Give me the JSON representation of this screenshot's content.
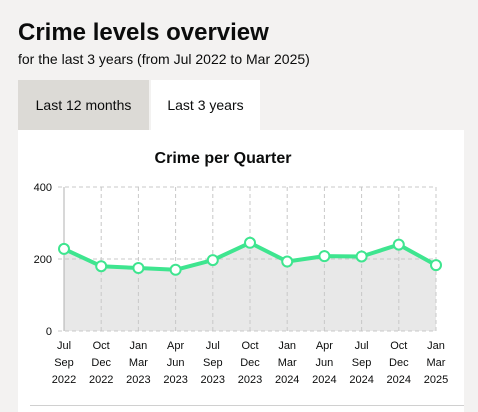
{
  "page": {
    "title": "Crime levels overview",
    "subtitle": "for the last 3 years (from Jul 2022 to Mar 2025)"
  },
  "tabs": [
    {
      "label": "Last 12 months",
      "selected": false
    },
    {
      "label": "Last 3 years",
      "selected": true
    }
  ],
  "colors": {
    "line": "#3ee58f",
    "area": "#e8e8e8",
    "grid": "#c8c8c8"
  },
  "chart_data": {
    "type": "area",
    "title": "Crime per Quarter",
    "xlabel": "",
    "ylabel": "",
    "ylim": [
      0,
      400
    ],
    "yticks": [
      0,
      200,
      400
    ],
    "grid": true,
    "categories": [
      [
        "Jul",
        "Sep",
        "2022"
      ],
      [
        "Oct",
        "Dec",
        "2022"
      ],
      [
        "Jan",
        "Mar",
        "2023"
      ],
      [
        "Apr",
        "Jun",
        "2023"
      ],
      [
        "Jul",
        "Sep",
        "2023"
      ],
      [
        "Oct",
        "Dec",
        "2023"
      ],
      [
        "Jan",
        "Mar",
        "2024"
      ],
      [
        "Apr",
        "Jun",
        "2024"
      ],
      [
        "Jul",
        "Sep",
        "2024"
      ],
      [
        "Oct",
        "Dec",
        "2024"
      ],
      [
        "Jan",
        "Mar",
        "2025"
      ]
    ],
    "values": [
      228,
      180,
      175,
      170,
      197,
      245,
      193,
      208,
      207,
      240,
      183
    ]
  }
}
